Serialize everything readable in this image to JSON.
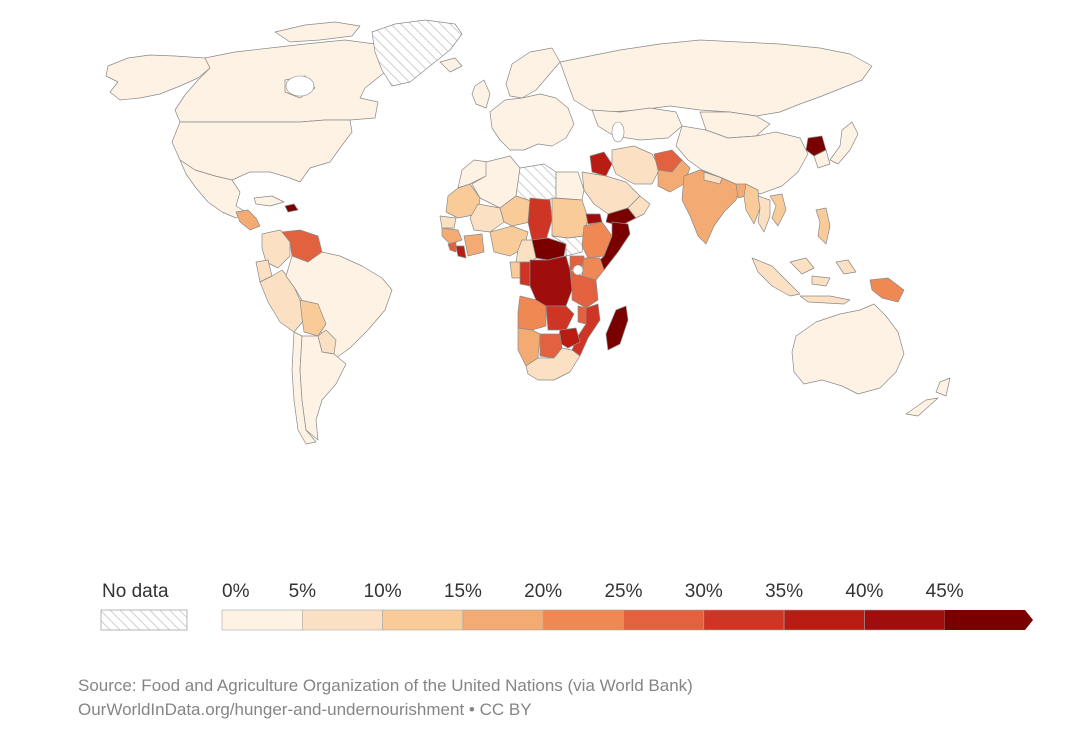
{
  "legend": {
    "no_data_label": "No data",
    "ticks": [
      "0%",
      "5%",
      "10%",
      "15%",
      "20%",
      "25%",
      "30%",
      "35%",
      "40%",
      "45%"
    ],
    "bins": [
      0,
      5,
      10,
      15,
      20,
      25,
      30,
      35,
      40,
      45,
      50
    ],
    "colors": [
      "#fdf2e3",
      "#fbe0c3",
      "#f8cb98",
      "#f4ab73",
      "#ef8853",
      "#e2613f",
      "#cf3524",
      "#b81c12",
      "#a00d0d",
      "#7a0000"
    ],
    "open_ended": true,
    "no_data_pattern": "hatched-gray"
  },
  "source": {
    "line1": "Source: Food and Agriculture Organization of the United Nations (via World Bank)",
    "line2": "OurWorldInData.org/hunger-and-undernourishment • CC BY"
  },
  "regions": [
    {
      "name": "Canada",
      "value": 2
    },
    {
      "name": "Alaska",
      "value": 2
    },
    {
      "name": "Greenland",
      "value": null
    },
    {
      "name": "United States",
      "value": 2
    },
    {
      "name": "Mexico",
      "value": 4
    },
    {
      "name": "Guatemala",
      "value": 16
    },
    {
      "name": "Haiti",
      "value": 47
    },
    {
      "name": "Cuba",
      "value": 2
    },
    {
      "name": "Colombia",
      "value": 8
    },
    {
      "name": "Venezuela",
      "value": 27
    },
    {
      "name": "Ecuador",
      "value": 9
    },
    {
      "name": "Peru",
      "value": 8
    },
    {
      "name": "Brazil",
      "value": 2
    },
    {
      "name": "Bolivia",
      "value": 14
    },
    {
      "name": "Paraguay",
      "value": 9
    },
    {
      "name": "Chile",
      "value": 2
    },
    {
      "name": "Argentina",
      "value": 2
    },
    {
      "name": "Iceland",
      "value": 2
    },
    {
      "name": "United Kingdom",
      "value": 2
    },
    {
      "name": "Europe",
      "value": 2
    },
    {
      "name": "Scandinavia",
      "value": 2
    },
    {
      "name": "Russia",
      "value": 2
    },
    {
      "name": "Kazakhstan",
      "value": 2
    },
    {
      "name": "Mongolia",
      "value": 4
    },
    {
      "name": "China",
      "value": 2
    },
    {
      "name": "North Korea",
      "value": 46
    },
    {
      "name": "South Korea",
      "value": 2
    },
    {
      "name": "Japan",
      "value": 2
    },
    {
      "name": "Morocco",
      "value": 4
    },
    {
      "name": "Algeria",
      "value": 2
    },
    {
      "name": "Libya",
      "value": null
    },
    {
      "name": "Egypt",
      "value": 4
    },
    {
      "name": "Mauritania",
      "value": 10
    },
    {
      "name": "Mali",
      "value": 7
    },
    {
      "name": "Niger",
      "value": 14
    },
    {
      "name": "Chad",
      "value": 31
    },
    {
      "name": "Sudan",
      "value": 12
    },
    {
      "name": "Senegal",
      "value": 9
    },
    {
      "name": "Guinea",
      "value": 16
    },
    {
      "name": "Sierra Leone",
      "value": 25
    },
    {
      "name": "Liberia",
      "value": 37
    },
    {
      "name": "Ivory Coast",
      "value": 19
    },
    {
      "name": "Nigeria",
      "value": 12
    },
    {
      "name": "Central African Republic",
      "value": 48
    },
    {
      "name": "South Sudan",
      "value": null
    },
    {
      "name": "Ethiopia",
      "value": 21
    },
    {
      "name": "Eritrea",
      "value": 40
    },
    {
      "name": "Somalia",
      "value": 46
    },
    {
      "name": "Kenya",
      "value": 24
    },
    {
      "name": "Cameroon",
      "value": 9
    },
    {
      "name": "Gabon",
      "value": 12
    },
    {
      "name": "Republic of Congo",
      "value": 30
    },
    {
      "name": "DR Congo",
      "value": 44
    },
    {
      "name": "Uganda",
      "value": 26
    },
    {
      "name": "Tanzania",
      "value": 25
    },
    {
      "name": "Angola",
      "value": 20
    },
    {
      "name": "Zambia",
      "value": 31
    },
    {
      "name": "Malawi",
      "value": 25
    },
    {
      "name": "Mozambique",
      "value": 31
    },
    {
      "name": "Zimbabwe",
      "value": 36
    },
    {
      "name": "Namibia",
      "value": 19
    },
    {
      "name": "Botswana",
      "value": 26
    },
    {
      "name": "South Africa",
      "value": 6
    },
    {
      "name": "Madagascar",
      "value": 45
    },
    {
      "name": "Saudi Arabia",
      "value": 7
    },
    {
      "name": "Yemen",
      "value": 45
    },
    {
      "name": "Oman",
      "value": 6
    },
    {
      "name": "Iraq",
      "value": 35
    },
    {
      "name": "Iran",
      "value": 5
    },
    {
      "name": "Afghanistan",
      "value": 27
    },
    {
      "name": "Pakistan",
      "value": 17
    },
    {
      "name": "India",
      "value": 16
    },
    {
      "name": "Nepal",
      "value": 8
    },
    {
      "name": "Bangladesh",
      "value": 15
    },
    {
      "name": "Myanmar",
      "value": 10
    },
    {
      "name": "Thailand",
      "value": 9
    },
    {
      "name": "Vietnam",
      "value": 11
    },
    {
      "name": "Philippines",
      "value": 12
    },
    {
      "name": "Indonesia",
      "value": 8
    },
    {
      "name": "Papua New Guinea",
      "value": 22
    },
    {
      "name": "Australia",
      "value": 2
    },
    {
      "name": "New Zealand",
      "value": 2
    }
  ]
}
